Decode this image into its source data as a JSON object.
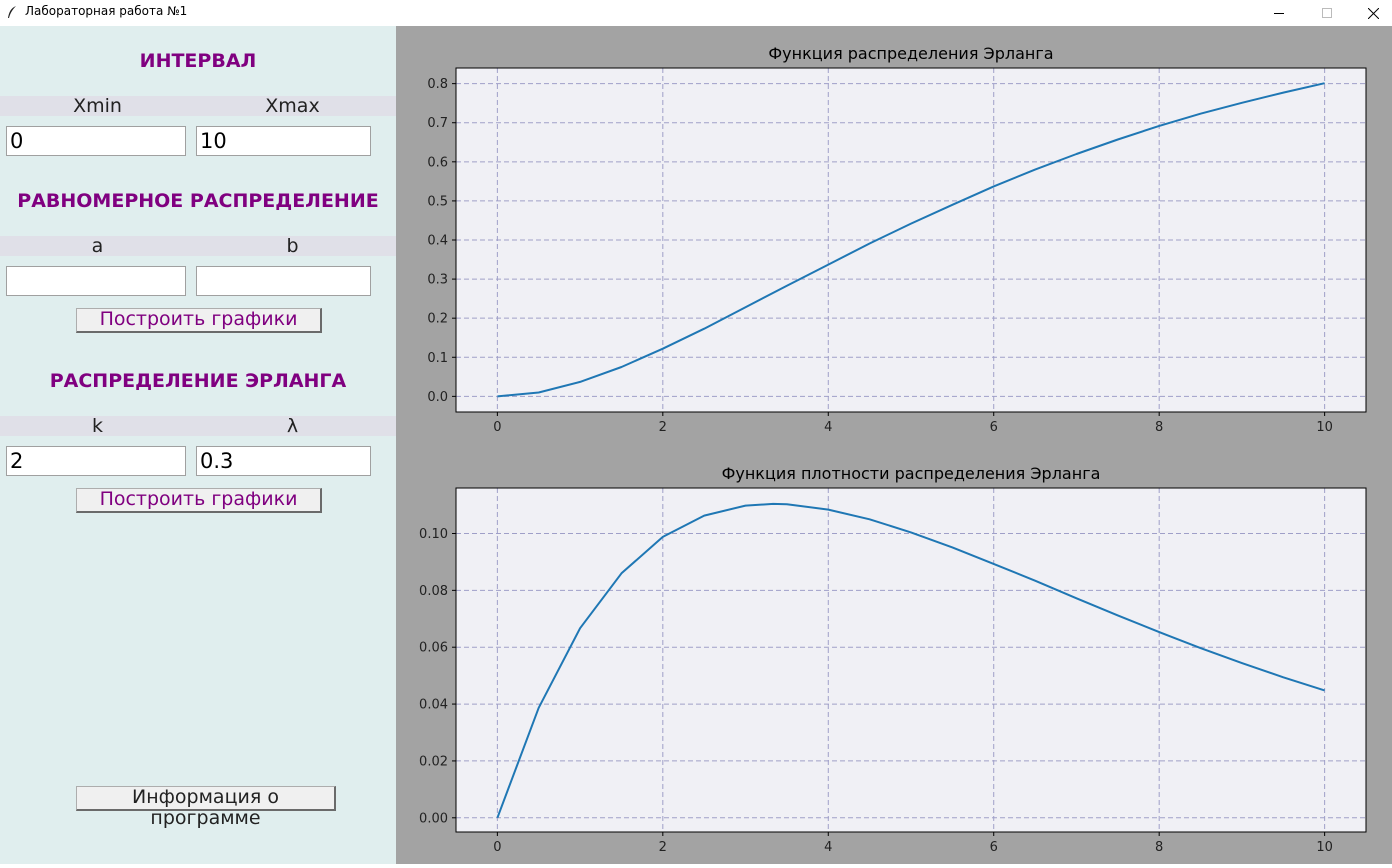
{
  "window": {
    "title": "Лабораторная работа №1",
    "icons": [
      "feather-icon",
      "minimize-icon",
      "maximize-icon",
      "close-icon"
    ]
  },
  "sidebar": {
    "interval": {
      "title": "ИНТЕРВАЛ",
      "xmin_label": "Xmin",
      "xmax_label": "Xmax",
      "xmin_value": "0",
      "xmax_value": "10"
    },
    "uniform": {
      "title": "РАВНОМЕРНОЕ РАСПРЕДЕЛЕНИЕ",
      "a_label": "a",
      "b_label": "b",
      "a_value": "",
      "b_value": "",
      "button": "Построить графики"
    },
    "erlang": {
      "title": "РАСПРЕДЕЛЕНИЕ ЭРЛАНГА",
      "k_label": "k",
      "lambda_label": "λ",
      "k_value": "2",
      "lambda_value": "0.3",
      "button": "Построить графики"
    },
    "info_button": "Информация о программе"
  },
  "colors": {
    "title_accent": "#800080",
    "sidebar_bg": "#e0eeee",
    "plot_bg": "#f0f0f5",
    "grid": "#9f9fc8",
    "line": "#1f77b4",
    "window_bg": "#a3a3a3"
  },
  "chart_data": [
    {
      "type": "line",
      "title": "Функция распределения Эрланга",
      "xlabel": "",
      "ylabel": "",
      "grid": true,
      "xlim": [
        -0.5,
        10.5
      ],
      "ylim": [
        -0.04,
        0.84
      ],
      "xticks": [
        0,
        2,
        4,
        6,
        8,
        10
      ],
      "yticks": [
        0.0,
        0.1,
        0.2,
        0.3,
        0.4,
        0.5,
        0.6,
        0.7,
        0.8
      ],
      "ytick_labels": [
        "0.0",
        "0.1",
        "0.2",
        "0.3",
        "0.4",
        "0.5",
        "0.6",
        "0.7",
        "0.8"
      ],
      "x": [
        0,
        0.5,
        1,
        1.5,
        2,
        2.5,
        3,
        3.5,
        4,
        4.5,
        5,
        5.5,
        6,
        6.5,
        7,
        7.5,
        8,
        8.5,
        9,
        9.5,
        10
      ],
      "y": [
        0,
        0.01,
        0.037,
        0.075,
        0.122,
        0.173,
        0.228,
        0.283,
        0.337,
        0.391,
        0.442,
        0.49,
        0.537,
        0.58,
        0.62,
        0.657,
        0.692,
        0.723,
        0.751,
        0.777,
        0.801
      ]
    },
    {
      "type": "line",
      "title": "Функция плотности распределения Эрланга",
      "xlabel": "",
      "ylabel": "",
      "grid": true,
      "xlim": [
        -0.5,
        10.5
      ],
      "ylim": [
        -0.005,
        0.116
      ],
      "xticks": [
        0,
        2,
        4,
        6,
        8,
        10
      ],
      "yticks": [
        0.0,
        0.02,
        0.04,
        0.06,
        0.08,
        0.1
      ],
      "ytick_labels": [
        "0.00",
        "0.02",
        "0.04",
        "0.06",
        "0.08",
        "0.10"
      ],
      "x": [
        0,
        0.5,
        1,
        1.5,
        2,
        2.5,
        3,
        3.333,
        3.5,
        4,
        4.5,
        5,
        5.5,
        6,
        6.5,
        7,
        7.5,
        8,
        8.5,
        9,
        9.5,
        10
      ],
      "y": [
        0,
        0.0387,
        0.0667,
        0.086,
        0.0988,
        0.1063,
        0.1098,
        0.1104,
        0.1103,
        0.1084,
        0.105,
        0.1004,
        0.0951,
        0.0893,
        0.0834,
        0.0772,
        0.0712,
        0.0653,
        0.0597,
        0.0544,
        0.0494,
        0.0448
      ]
    }
  ]
}
